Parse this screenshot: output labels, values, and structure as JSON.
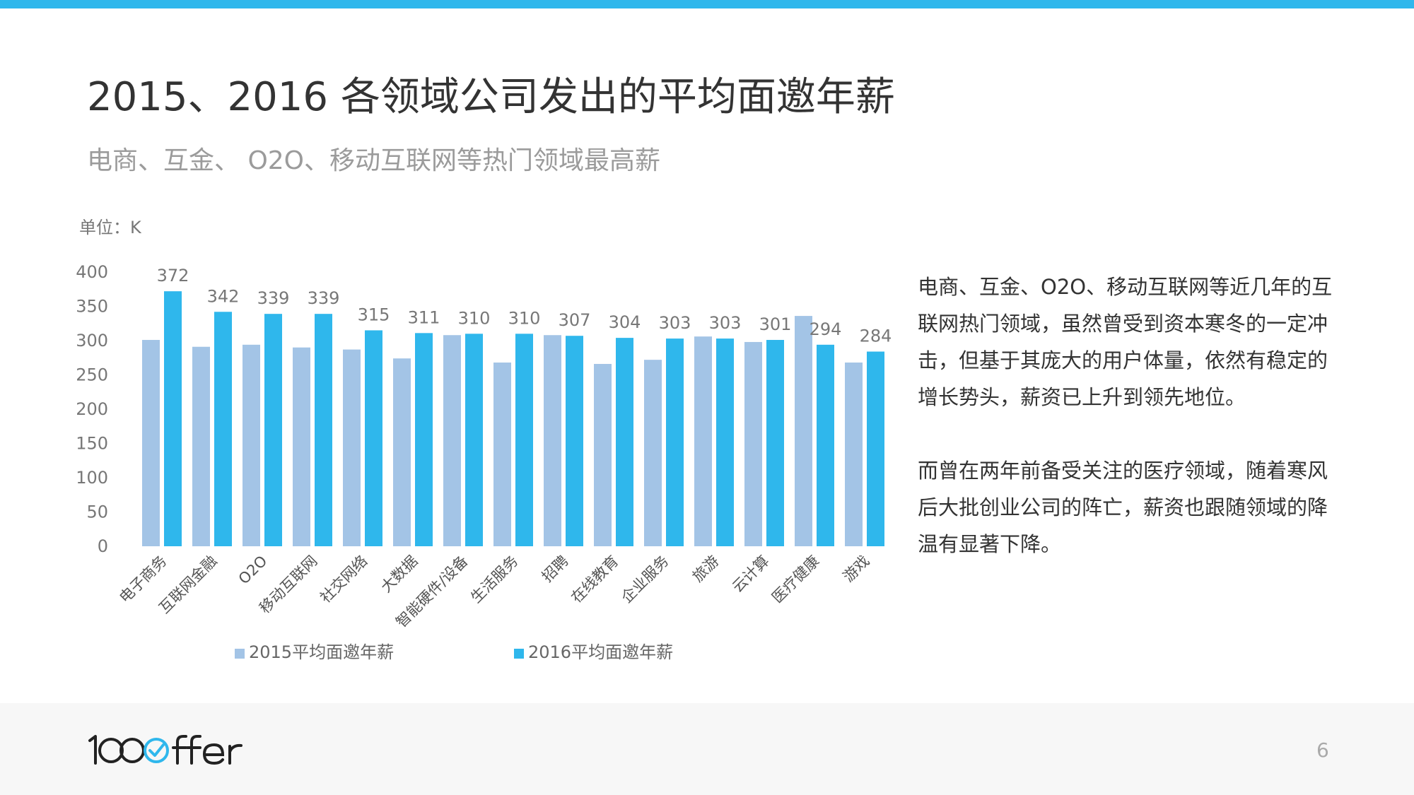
{
  "header": {
    "title": "2015、2016 各领域公司发出的平均面邀年薪",
    "subtitle": "电商、互金、 O2O、移动互联网等热门领域最高薪",
    "unit": "单位：K"
  },
  "colors": {
    "accent": "#2fb7ec",
    "series2015": "#a3c4e6",
    "series2016": "#2fb7ec"
  },
  "chart_data": {
    "type": "bar",
    "categories": [
      "电子商务",
      "互联网金融",
      "O2O",
      "移动互联网",
      "社交网络",
      "大数据",
      "智能硬件/设备",
      "生活服务",
      "招聘",
      "在线教育",
      "企业服务",
      "旅游",
      "云计算",
      "医疗健康",
      "游戏"
    ],
    "series": [
      {
        "name": "2015平均面邀年薪",
        "values": [
          301,
          291,
          294,
          290,
          287,
          274,
          308,
          268,
          308,
          266,
          272,
          306,
          298,
          336,
          268
        ]
      },
      {
        "name": "2016平均面邀年薪",
        "values": [
          372,
          342,
          339,
          339,
          315,
          311,
          310,
          310,
          307,
          304,
          303,
          303,
          301,
          294,
          284
        ]
      }
    ],
    "data_labels": [
      "372",
      "342",
      "339",
      "339",
      "315",
      "311",
      "310",
      "310",
      "307",
      "304",
      "303",
      "303",
      "301",
      "294",
      "284"
    ],
    "yticks": [
      "0",
      "50",
      "100",
      "150",
      "200",
      "250",
      "300",
      "350",
      "400"
    ],
    "ylim": [
      0,
      400
    ],
    "legend_position": "bottom"
  },
  "description": {
    "para1": "电商、互金、O2O、移动互联网等近几年的互联网热门领域，虽然曾受到资本寒冬的一定冲击，但基于其庞大的用户体量，依然有稳定的增长势头，薪资已上升到领先地位。",
    "para2": "而曾在两年前备受关注的医疗领域，随着寒风后大批创业公司的阵亡，薪资也跟随领域的降温有显著下降。"
  },
  "footer": {
    "logo_text": "100ffer",
    "page_number": "6"
  }
}
